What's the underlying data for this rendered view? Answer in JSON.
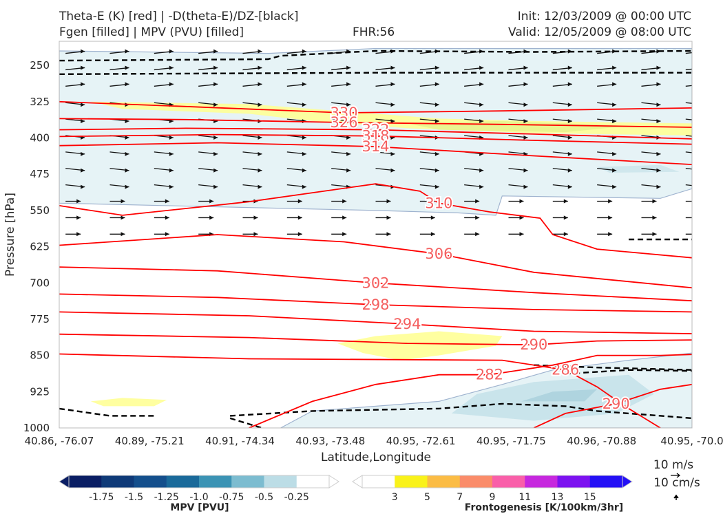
{
  "header": {
    "title_line1": "Theta-E (K) [red] | -D(theta-E)/DZ-[black]",
    "title_line2": "Fgen [filled] | MPV (PVU) [filled]",
    "fhr": "FHR:56",
    "init": "Init: 12/03/2009 @ 00:00 UTC",
    "valid": "Valid: 12/05/2009 @ 08:00 UTC"
  },
  "chart_data": {
    "type": "cross-section",
    "xlabel": "Latitude,Longitude",
    "ylabel": "Pressure [hPa]",
    "x_ticks": [
      "40.86, -76.07",
      "40.89, -75.21",
      "40.91, -74.34",
      "40.93, -73.48",
      "40.95, -72.61",
      "40.95, -71.75",
      "40.96, -70.88",
      "40.95, -70.0"
    ],
    "y_ticks": [
      250,
      325,
      400,
      475,
      550,
      625,
      700,
      775,
      850,
      925,
      1000
    ],
    "ylim": [
      1000,
      200
    ],
    "theta_e_contours": [
      {
        "label": "330",
        "points": [
          [
            0,
            325
          ],
          [
            0.2,
            335
          ],
          [
            0.45,
            348
          ],
          [
            0.7,
            344
          ],
          [
            1,
            338
          ]
        ]
      },
      {
        "label": "326",
        "points": [
          [
            0,
            360
          ],
          [
            0.2,
            362
          ],
          [
            0.45,
            368
          ],
          [
            0.7,
            372
          ],
          [
            1,
            378
          ]
        ]
      },
      {
        "label": "322",
        "points": [
          [
            0,
            383
          ],
          [
            0.2,
            380
          ],
          [
            0.5,
            383
          ],
          [
            0.75,
            392
          ],
          [
            1,
            402
          ]
        ]
      },
      {
        "label": "318",
        "points": [
          [
            0,
            397
          ],
          [
            0.25,
            393
          ],
          [
            0.5,
            396
          ],
          [
            0.75,
            405
          ],
          [
            1,
            413
          ]
        ]
      },
      {
        "label": "314",
        "points": [
          [
            0,
            416
          ],
          [
            0.25,
            410
          ],
          [
            0.5,
            418
          ],
          [
            0.75,
            437
          ],
          [
            1,
            455
          ]
        ]
      },
      {
        "label": "310",
        "points": [
          [
            0,
            540
          ],
          [
            0.1,
            560
          ],
          [
            0.3,
            532
          ],
          [
            0.5,
            495
          ],
          [
            0.57,
            510
          ],
          [
            0.6,
            535
          ],
          [
            0.68,
            553
          ],
          [
            0.76,
            566
          ],
          [
            0.78,
            600
          ],
          [
            0.85,
            630
          ],
          [
            1,
            648
          ]
        ]
      },
      {
        "label": "306",
        "points": [
          [
            0,
            622
          ],
          [
            0.25,
            600
          ],
          [
            0.45,
            615
          ],
          [
            0.6,
            640
          ],
          [
            0.75,
            678
          ],
          [
            1,
            710
          ]
        ]
      },
      {
        "label": "302",
        "points": [
          [
            0,
            667
          ],
          [
            0.25,
            675
          ],
          [
            0.5,
            700
          ],
          [
            0.75,
            720
          ],
          [
            1,
            737
          ]
        ]
      },
      {
        "label": "298",
        "points": [
          [
            0,
            723
          ],
          [
            0.25,
            730
          ],
          [
            0.5,
            745
          ],
          [
            0.75,
            755
          ],
          [
            1,
            760
          ]
        ]
      },
      {
        "label": "294",
        "points": [
          [
            0,
            760
          ],
          [
            0.3,
            768
          ],
          [
            0.55,
            785
          ],
          [
            0.75,
            800
          ],
          [
            1,
            805
          ]
        ]
      },
      {
        "label": "290",
        "points": [
          [
            0,
            806
          ],
          [
            0.3,
            813
          ],
          [
            0.55,
            825
          ],
          [
            0.75,
            828
          ],
          [
            0.85,
            820
          ],
          [
            1,
            818
          ]
        ]
      },
      {
        "label": "286",
        "points": [
          [
            0,
            847
          ],
          [
            0.3,
            857
          ],
          [
            0.7,
            860
          ],
          [
            0.8,
            880
          ],
          [
            0.85,
            915
          ],
          [
            0.9,
            960
          ],
          [
            0.95,
            1000
          ]
        ]
      },
      {
        "label": "282",
        "points": [
          [
            0.3,
            1000
          ],
          [
            0.4,
            945
          ],
          [
            0.5,
            910
          ],
          [
            0.6,
            890
          ],
          [
            0.68,
            890
          ],
          [
            0.78,
            870
          ],
          [
            0.85,
            850
          ],
          [
            0.95,
            850
          ],
          [
            1,
            848
          ]
        ]
      },
      {
        "label": "290",
        "points": [
          [
            0.75,
            1000
          ],
          [
            0.8,
            970
          ],
          [
            0.88,
            950
          ],
          [
            0.95,
            920
          ],
          [
            1,
            910
          ]
        ]
      }
    ],
    "stability_contours_black_dashed": [
      [
        [
          0,
          240
        ],
        [
          0.33,
          237
        ],
        [
          0.35,
          230
        ],
        [
          0.5,
          220
        ],
        [
          0.75,
          222
        ],
        [
          1,
          220
        ]
      ],
      [
        [
          0,
          268
        ],
        [
          0.5,
          265
        ],
        [
          1,
          265
        ]
      ],
      [
        [
          0,
          960
        ],
        [
          0.08,
          975
        ],
        [
          0.15,
          975
        ]
      ],
      [
        [
          0.27,
          975
        ],
        [
          0.4,
          965
        ],
        [
          0.6,
          960
        ],
        [
          0.7,
          950
        ],
        [
          0.8,
          955
        ],
        [
          0.85,
          965
        ],
        [
          1,
          980
        ]
      ],
      [
        [
          0.27,
          980
        ],
        [
          0.32,
          1000
        ]
      ],
      [
        [
          0.8,
          888
        ],
        [
          0.9,
          880
        ],
        [
          1,
          882
        ]
      ],
      [
        [
          0.75,
          870
        ],
        [
          0.85,
          875
        ],
        [
          1,
          880
        ]
      ],
      [
        [
          0.9,
          610
        ],
        [
          1,
          610
        ]
      ]
    ],
    "mpv_colorbar": {
      "label": "MPV [PVU]",
      "ticks": [
        "-1.75",
        "-1.5",
        "-1.25",
        "-1.0",
        "-0.75",
        "-0.5",
        "-0.25"
      ],
      "colors": [
        "#0a1e64",
        "#0f3a78",
        "#144f8c",
        "#1a6a9a",
        "#3b93b4",
        "#7cbcd0",
        "#bcdde6",
        "#ffffff"
      ]
    },
    "fgen_colorbar": {
      "label": "Frontogenesis [K/100km/3hr]",
      "ticks": [
        "3",
        "5",
        "7",
        "9",
        "11",
        "13",
        "15"
      ],
      "colors": [
        "#ffffff",
        "#f9f21b",
        "#fbbc45",
        "#fa8c6a",
        "#f95fa9",
        "#c628de",
        "#7c12f0",
        "#2410f5"
      ]
    },
    "wind_key": {
      "horizontal": "10 m/s",
      "vertical": "10 cm/s"
    },
    "colors": {
      "theta_e": "#ff0000",
      "stability": "#000000",
      "fgen_weak": "#ffff8f",
      "mpv_weak": "#e6f3f6",
      "mpv_mid": "#c2e0e8",
      "mpv_contour": "#9fb3cf"
    }
  }
}
